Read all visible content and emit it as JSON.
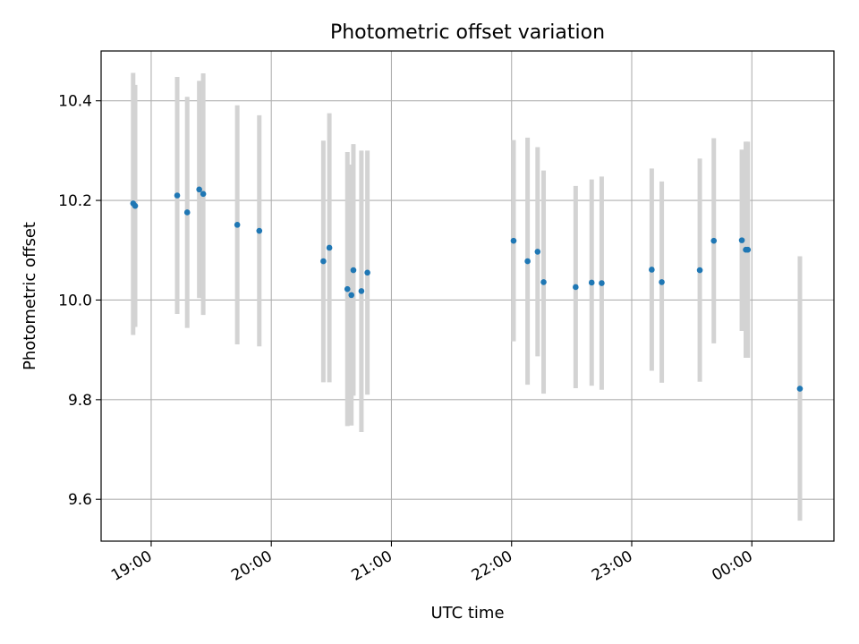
{
  "chart_data": {
    "type": "scatter",
    "title": "Photometric offset variation",
    "xlabel": "UTC time",
    "ylabel": "Photometric offset",
    "x_axis": {
      "kind": "time",
      "range": [
        "18:35",
        "00:41"
      ],
      "ticks": [
        {
          "time": "19:00",
          "label": "19:00"
        },
        {
          "time": "20:00",
          "label": "20:00"
        },
        {
          "time": "21:00",
          "label": "21:00"
        },
        {
          "time": "22:00",
          "label": "22:00"
        },
        {
          "time": "23:00",
          "label": "23:00"
        },
        {
          "time": "00:00",
          "label": "00:00"
        }
      ]
    },
    "y_axis": {
      "range": [
        9.516,
        10.5
      ],
      "ticks": [
        9.6,
        9.8,
        10.0,
        10.2,
        10.4
      ],
      "tick_labels": [
        "9.6",
        "9.8",
        "10.0",
        "10.2",
        "10.4"
      ]
    },
    "grid": true,
    "marker_color": "#1f77b4",
    "errorbar_color": "#d3d3d3",
    "points": [
      {
        "time": "18:51",
        "y": 10.194,
        "ylo": 9.93,
        "yhi": 10.456
      },
      {
        "time": "18:52",
        "y": 10.189,
        "ylo": 9.946,
        "yhi": 10.432
      },
      {
        "time": "19:13",
        "y": 10.21,
        "ylo": 9.972,
        "yhi": 10.448
      },
      {
        "time": "19:18",
        "y": 10.176,
        "ylo": 9.944,
        "yhi": 10.408
      },
      {
        "time": "19:24",
        "y": 10.222,
        "ylo": 10.004,
        "yhi": 10.44
      },
      {
        "time": "19:26",
        "y": 10.213,
        "ylo": 9.97,
        "yhi": 10.455
      },
      {
        "time": "19:43",
        "y": 10.151,
        "ylo": 9.911,
        "yhi": 10.391
      },
      {
        "time": "19:54",
        "y": 10.139,
        "ylo": 9.907,
        "yhi": 10.371
      },
      {
        "time": "20:26",
        "y": 10.078,
        "ylo": 9.835,
        "yhi": 10.32
      },
      {
        "time": "20:29",
        "y": 10.105,
        "ylo": 9.835,
        "yhi": 10.375
      },
      {
        "time": "20:38",
        "y": 10.022,
        "ylo": 9.747,
        "yhi": 10.297
      },
      {
        "time": "20:40",
        "y": 10.01,
        "ylo": 9.748,
        "yhi": 10.272
      },
      {
        "time": "20:41",
        "y": 10.06,
        "ylo": 9.808,
        "yhi": 10.313
      },
      {
        "time": "20:45",
        "y": 10.018,
        "ylo": 9.735,
        "yhi": 10.3
      },
      {
        "time": "20:48",
        "y": 10.055,
        "ylo": 9.81,
        "yhi": 10.3
      },
      {
        "time": "22:01",
        "y": 10.119,
        "ylo": 9.917,
        "yhi": 10.321
      },
      {
        "time": "22:08",
        "y": 10.078,
        "ylo": 9.83,
        "yhi": 10.326
      },
      {
        "time": "22:13",
        "y": 10.097,
        "ylo": 9.887,
        "yhi": 10.307
      },
      {
        "time": "22:16",
        "y": 10.036,
        "ylo": 9.812,
        "yhi": 10.26
      },
      {
        "time": "22:32",
        "y": 10.026,
        "ylo": 9.823,
        "yhi": 10.229
      },
      {
        "time": "22:40",
        "y": 10.035,
        "ylo": 9.828,
        "yhi": 10.242
      },
      {
        "time": "22:45",
        "y": 10.034,
        "ylo": 9.82,
        "yhi": 10.248
      },
      {
        "time": "23:10",
        "y": 10.061,
        "ylo": 9.858,
        "yhi": 10.264
      },
      {
        "time": "23:15",
        "y": 10.036,
        "ylo": 9.834,
        "yhi": 10.238
      },
      {
        "time": "23:34",
        "y": 10.06,
        "ylo": 9.836,
        "yhi": 10.284
      },
      {
        "time": "23:41",
        "y": 10.119,
        "ylo": 9.913,
        "yhi": 10.325
      },
      {
        "time": "23:55",
        "y": 10.12,
        "ylo": 9.938,
        "yhi": 10.302
      },
      {
        "time": "23:57",
        "y": 10.101,
        "ylo": 9.884,
        "yhi": 10.318
      },
      {
        "time": "23:58",
        "y": 10.101,
        "ylo": 9.884,
        "yhi": 10.318
      },
      {
        "time": "00:24",
        "y": 9.822,
        "ylo": 9.557,
        "yhi": 10.088
      }
    ]
  }
}
